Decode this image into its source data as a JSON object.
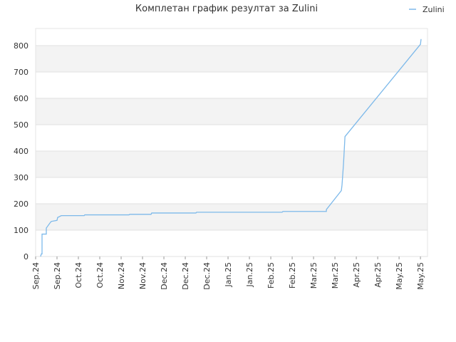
{
  "chart_data": {
    "type": "line",
    "title": "Комплетан график резултат за Zulini",
    "xlim": [
      0,
      18.33
    ],
    "xticks": [
      {
        "value": 0,
        "label": "Sep.24"
      },
      {
        "value": 1,
        "label": "Sep.24"
      },
      {
        "value": 2,
        "label": "Oct.24"
      },
      {
        "value": 3,
        "label": "Oct.24"
      },
      {
        "value": 4,
        "label": "Nov.24"
      },
      {
        "value": 5,
        "label": "Nov.24"
      },
      {
        "value": 6,
        "label": "Dec.24"
      },
      {
        "value": 7,
        "label": "Dec.24"
      },
      {
        "value": 8,
        "label": "Dec.24"
      },
      {
        "value": 9,
        "label": "Jan.25"
      },
      {
        "value": 10,
        "label": "Jan.25"
      },
      {
        "value": 11,
        "label": "Feb.25"
      },
      {
        "value": 12,
        "label": "Feb.25"
      },
      {
        "value": 13,
        "label": "Mar.25"
      },
      {
        "value": 14,
        "label": "Mar.25"
      },
      {
        "value": 15,
        "label": "Apr.25"
      },
      {
        "value": 16,
        "label": "Apr.25"
      },
      {
        "value": 17,
        "label": "May.25"
      },
      {
        "value": 18,
        "label": "May.25"
      }
    ],
    "ylim": [
      0,
      865
    ],
    "yticks": [
      0,
      100,
      200,
      300,
      400,
      500,
      600,
      700,
      800
    ],
    "grid": true,
    "legend": "top-right",
    "x": [
      0.23,
      0.27,
      0.3,
      0.3,
      0.5,
      0.5,
      0.67,
      0.73,
      1.0,
      1.03,
      1.2,
      2.27,
      2.3,
      4.37,
      4.4,
      5.4,
      5.43,
      7.5,
      7.53,
      11.53,
      11.57,
      13.6,
      13.6,
      14.3,
      14.33,
      14.4,
      14.47,
      18.0,
      18.03
    ],
    "series": [
      {
        "name": "Zulini",
        "color": "#7db9ea",
        "values": [
          0,
          10,
          10,
          85,
          85,
          108,
          127,
          133,
          137,
          148,
          155,
          155,
          158,
          158,
          160,
          160,
          165,
          165,
          168,
          168,
          171,
          171,
          178,
          250,
          270,
          350,
          455,
          805,
          825
        ]
      }
    ]
  }
}
